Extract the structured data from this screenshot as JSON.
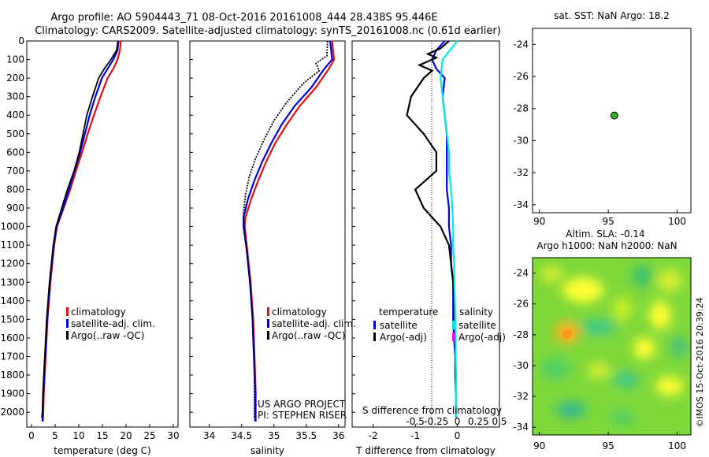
{
  "title_line1": "Argo profile: AO 5904443_71 08-Oct-2016 20161008_444 28.438S 95.446E",
  "title_line2": "Climatology: CARS2009. Satellite-adjusted climatology: synTS_20161008.nc (0.61d earlier)",
  "colors": {
    "climatology": "#e01010",
    "satellite": "#0000e0",
    "argo": "#000000",
    "sal_satellite": "#00e8e8",
    "sal_argo": "#ff00ff",
    "map_dot": "#30b030"
  },
  "chart_data": [
    {
      "type": "line",
      "name": "temperature",
      "xlabel": "temperature (deg C)",
      "ylabel": "",
      "xlim": [
        -1,
        31
      ],
      "ylim": [
        2080,
        0
      ],
      "xticks": [
        0,
        5,
        10,
        15,
        20,
        25,
        30
      ],
      "yticks": [
        0,
        100,
        200,
        300,
        400,
        500,
        600,
        700,
        800,
        900,
        1000,
        1100,
        1200,
        1300,
        1400,
        1500,
        1600,
        1700,
        1800,
        1900,
        2000
      ],
      "legend": [
        "climatology",
        "satellite-adj. clim.",
        "Argo(..raw -QC)"
      ],
      "series": [
        {
          "name": "climatology",
          "color": "#e01010",
          "points": [
            [
              18.9,
              0
            ],
            [
              18.7,
              50
            ],
            [
              18.2,
              100
            ],
            [
              17.3,
              150
            ],
            [
              16.1,
              200
            ],
            [
              14.6,
              300
            ],
            [
              13.2,
              400
            ],
            [
              11.9,
              500
            ],
            [
              10.7,
              600
            ],
            [
              9.4,
              700
            ],
            [
              8.2,
              800
            ],
            [
              6.8,
              900
            ],
            [
              5.4,
              1000
            ],
            [
              4.8,
              1100
            ],
            [
              4.4,
              1200
            ],
            [
              4.0,
              1300
            ],
            [
              3.7,
              1400
            ],
            [
              3.4,
              1500
            ],
            [
              3.2,
              1600
            ],
            [
              3.0,
              1700
            ],
            [
              2.8,
              1800
            ],
            [
              2.6,
              1900
            ],
            [
              2.5,
              2000
            ],
            [
              2.4,
              2050
            ]
          ]
        },
        {
          "name": "satellite-adj. clim.",
          "color": "#0000e0",
          "points": [
            [
              18.4,
              0
            ],
            [
              18.2,
              50
            ],
            [
              17.3,
              100
            ],
            [
              16.1,
              150
            ],
            [
              14.9,
              200
            ],
            [
              13.5,
              300
            ],
            [
              12.3,
              400
            ],
            [
              11.3,
              500
            ],
            [
              10.3,
              600
            ],
            [
              9.1,
              700
            ],
            [
              7.9,
              800
            ],
            [
              6.7,
              900
            ],
            [
              5.3,
              1000
            ],
            [
              4.7,
              1100
            ],
            [
              4.3,
              1200
            ],
            [
              3.9,
              1300
            ],
            [
              3.6,
              1400
            ],
            [
              3.3,
              1500
            ],
            [
              3.1,
              1600
            ],
            [
              2.9,
              1700
            ],
            [
              2.7,
              1800
            ],
            [
              2.5,
              1900
            ],
            [
              2.4,
              2000
            ],
            [
              2.3,
              2050
            ]
          ]
        },
        {
          "name": "Argo(..raw -QC)",
          "color": "#000000",
          "points": [
            [
              18.3,
              0
            ],
            [
              18.0,
              50
            ],
            [
              16.8,
              100
            ],
            [
              15.4,
              150
            ],
            [
              14.2,
              200
            ],
            [
              12.9,
              300
            ],
            [
              11.7,
              400
            ],
            [
              10.9,
              500
            ],
            [
              10.1,
              600
            ],
            [
              9.0,
              700
            ],
            [
              7.6,
              800
            ],
            [
              6.4,
              900
            ],
            [
              5.2,
              1000
            ],
            [
              4.6,
              1100
            ],
            [
              4.2,
              1200
            ],
            [
              3.8,
              1300
            ],
            [
              3.5,
              1400
            ],
            [
              3.2,
              1500
            ],
            [
              3.0,
              1600
            ],
            [
              2.8,
              1700
            ],
            [
              2.6,
              1800
            ],
            [
              2.4,
              1900
            ],
            [
              2.3,
              2000
            ],
            [
              2.2,
              2030
            ]
          ]
        }
      ]
    },
    {
      "type": "line",
      "name": "salinity",
      "xlabel": "salinity",
      "xlim": [
        33.7,
        36.1
      ],
      "ylim": [
        2080,
        0
      ],
      "xticks": [
        34,
        34.5,
        35,
        35.5,
        36
      ],
      "legend": [
        "climatology",
        "satellite-adj. clim.",
        "Argo(..raw -QC)"
      ],
      "annotation": [
        "US ARGO PROJECT",
        "PI: STEPHEN RISER"
      ],
      "series": [
        {
          "name": "climatology",
          "color": "#e01010",
          "points": [
            [
              35.9,
              0
            ],
            [
              35.93,
              100
            ],
            [
              35.85,
              150
            ],
            [
              35.65,
              250
            ],
            [
              35.4,
              350
            ],
            [
              35.2,
              450
            ],
            [
              35.02,
              550
            ],
            [
              34.88,
              650
            ],
            [
              34.76,
              750
            ],
            [
              34.65,
              850
            ],
            [
              34.56,
              950
            ],
            [
              34.55,
              1000
            ],
            [
              34.58,
              1100
            ],
            [
              34.61,
              1200
            ],
            [
              34.64,
              1300
            ],
            [
              34.66,
              1400
            ],
            [
              34.68,
              1500
            ],
            [
              34.69,
              1600
            ],
            [
              34.7,
              1700
            ],
            [
              34.71,
              1800
            ],
            [
              34.72,
              1900
            ],
            [
              34.72,
              2000
            ],
            [
              34.72,
              2050
            ]
          ]
        },
        {
          "name": "satellite-adj. clim.",
          "color": "#0000e0",
          "points": [
            [
              35.87,
              0
            ],
            [
              35.9,
              100
            ],
            [
              35.78,
              150
            ],
            [
              35.58,
              250
            ],
            [
              35.32,
              350
            ],
            [
              35.12,
              450
            ],
            [
              34.96,
              550
            ],
            [
              34.82,
              650
            ],
            [
              34.7,
              750
            ],
            [
              34.6,
              850
            ],
            [
              34.53,
              950
            ],
            [
              34.53,
              1000
            ],
            [
              34.57,
              1100
            ],
            [
              34.6,
              1200
            ],
            [
              34.63,
              1300
            ],
            [
              34.65,
              1400
            ],
            [
              34.67,
              1500
            ],
            [
              34.68,
              1600
            ],
            [
              34.69,
              1700
            ],
            [
              34.7,
              1800
            ],
            [
              34.71,
              1900
            ],
            [
              34.71,
              2000
            ],
            [
              34.71,
              2050
            ]
          ]
        },
        {
          "name": "Argo(..raw -QC)",
          "color": "#000000",
          "points": [
            [
              35.83,
              0
            ],
            [
              35.82,
              80
            ],
            [
              35.65,
              120
            ],
            [
              35.7,
              160
            ],
            [
              35.45,
              230
            ],
            [
              35.2,
              330
            ],
            [
              35.0,
              430
            ],
            [
              34.85,
              530
            ],
            [
              34.72,
              630
            ],
            [
              34.62,
              730
            ],
            [
              34.56,
              830
            ],
            [
              34.53,
              930
            ],
            [
              34.54,
              1000
            ],
            [
              34.57,
              1100
            ],
            [
              34.6,
              1200
            ],
            [
              34.63,
              1300
            ],
            [
              34.65,
              1400
            ],
            [
              34.67,
              1500
            ],
            [
              34.68,
              1600
            ],
            [
              34.69,
              1700
            ],
            [
              34.7,
              1800
            ],
            [
              34.7,
              1900
            ],
            [
              34.7,
              2000
            ],
            [
              34.7,
              2030
            ]
          ]
        }
      ]
    },
    {
      "type": "line",
      "name": "difference",
      "xlabel": "T difference from climatology",
      "xlabel_top": "S difference from climatology",
      "xlim": [
        -2.5,
        1.0
      ],
      "ylim": [
        2080,
        0
      ],
      "xticks": [
        -2,
        -1,
        0
      ],
      "xticklabels": [
        "-2",
        "-1",
        "0"
      ],
      "sticks": [
        -0.5,
        -0.25,
        0,
        0.25,
        0.5
      ],
      "sticklabels": [
        "-0.5",
        "-0.25",
        "0",
        "0.25",
        "0.5"
      ],
      "legend_titles": [
        "temperature",
        "salinity"
      ],
      "legend": [
        "satellite",
        "Argo(-adj)",
        "satellite",
        "Argo(-adj)"
      ],
      "series": [
        {
          "name": "temperature satellite",
          "color": "#0000e0",
          "points": [
            [
              -0.3,
              0
            ],
            [
              -0.5,
              50
            ],
            [
              -0.6,
              100
            ],
            [
              -0.5,
              150
            ],
            [
              -0.3,
              200
            ],
            [
              -0.35,
              300
            ],
            [
              -0.3,
              400
            ],
            [
              -0.25,
              500
            ],
            [
              -0.25,
              600
            ],
            [
              -0.25,
              700
            ],
            [
              -0.25,
              800
            ],
            [
              -0.2,
              900
            ],
            [
              -0.2,
              1000
            ],
            [
              -0.15,
              1100
            ],
            [
              -0.15,
              1200
            ],
            [
              -0.1,
              1300
            ],
            [
              -0.1,
              1400
            ],
            [
              -0.1,
              1500
            ],
            [
              -0.08,
              1600
            ],
            [
              -0.05,
              1700
            ],
            [
              -0.05,
              1800
            ],
            [
              -0.03,
              1900
            ],
            [
              -0.03,
              2000
            ],
            [
              -0.03,
              2030
            ]
          ]
        },
        {
          "name": "temperature Argo(-adj)",
          "color": "#000000",
          "points": [
            [
              -0.2,
              0
            ],
            [
              -0.4,
              40
            ],
            [
              -0.7,
              70
            ],
            [
              -0.5,
              90
            ],
            [
              -0.9,
              130
            ],
            [
              -0.6,
              160
            ],
            [
              -0.8,
              200
            ],
            [
              -1.1,
              300
            ],
            [
              -1.2,
              400
            ],
            [
              -0.8,
              500
            ],
            [
              -0.5,
              600
            ],
            [
              -0.5,
              700
            ],
            [
              -1.0,
              800
            ],
            [
              -0.8,
              900
            ],
            [
              -0.4,
              1000
            ],
            [
              -0.2,
              1100
            ],
            [
              -0.15,
              1200
            ],
            [
              -0.1,
              1300
            ],
            [
              -0.08,
              1400
            ],
            [
              -0.06,
              1500
            ],
            [
              -0.05,
              1600
            ],
            [
              -0.04,
              1700
            ],
            [
              -0.04,
              1800
            ],
            [
              -0.03,
              1900
            ],
            [
              -0.03,
              2000
            ],
            [
              -0.03,
              2030
            ]
          ]
        },
        {
          "name": "salinity satellite",
          "color": "#00e8e8",
          "points": [
            [
              0.0,
              0
            ],
            [
              -0.35,
              100
            ],
            [
              -0.4,
              200
            ],
            [
              -0.35,
              300
            ],
            [
              -0.3,
              400
            ],
            [
              -0.25,
              500
            ],
            [
              -0.2,
              600
            ],
            [
              -0.2,
              700
            ],
            [
              -0.15,
              800
            ],
            [
              -0.12,
              900
            ],
            [
              -0.1,
              1000
            ],
            [
              -0.1,
              1100
            ],
            [
              -0.08,
              1200
            ],
            [
              -0.07,
              1300
            ],
            [
              -0.06,
              1400
            ],
            [
              -0.05,
              1500
            ],
            [
              -0.04,
              1600
            ],
            [
              -0.04,
              1700
            ],
            [
              -0.03,
              1800
            ],
            [
              -0.03,
              1900
            ],
            [
              -0.03,
              2000
            ],
            [
              -0.03,
              2030
            ]
          ]
        }
      ]
    },
    {
      "type": "scatter",
      "name": "location",
      "title": "sat. SST: NaN Argo: 18.2",
      "xlim": [
        89.5,
        101
      ],
      "ylim": [
        -34.5,
        -23
      ],
      "xticks": [
        90,
        95,
        100
      ],
      "yticks": [
        -24,
        -26,
        -28,
        -30,
        -32,
        -34
      ],
      "points": [
        [
          95.446,
          -28.438
        ]
      ]
    },
    {
      "type": "heatmap",
      "name": "altimetry",
      "title_line1": "Altim. SLA: -0.14",
      "title_line2": "Argo h1000: NaN h2000: NaN",
      "xlim": [
        89.5,
        101
      ],
      "ylim": [
        -34.5,
        -23
      ],
      "xticks": [
        90,
        95,
        100
      ],
      "yticks": [
        -24,
        -26,
        -28,
        -30,
        -32,
        -34
      ],
      "side_label": "©IMOS 15-Oct-2016 20:39:24"
    }
  ]
}
